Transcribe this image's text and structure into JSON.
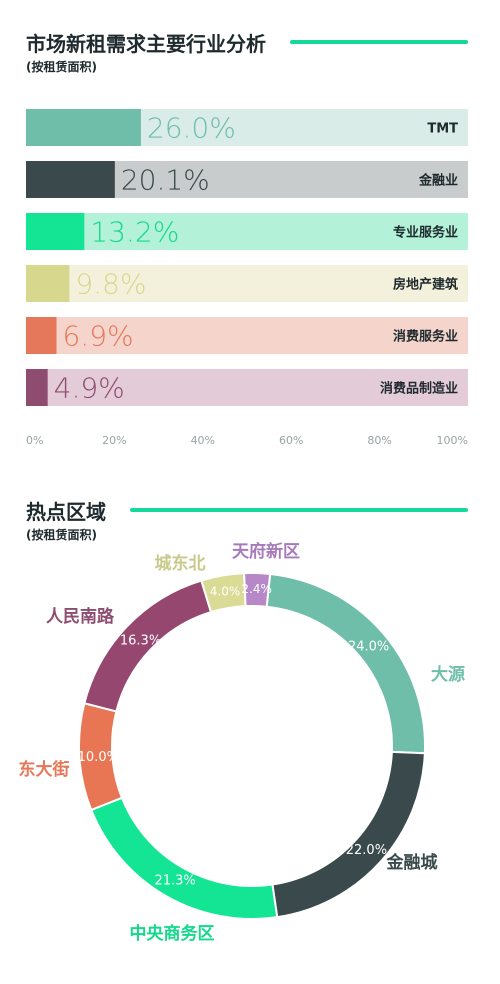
{
  "sections": {
    "industry_title": "市场新租需求主要行业分析",
    "industry_subtitle": "(按租赁面积)",
    "hotspot_title": "热点区域",
    "hotspot_subtitle": "(按租赁面积)"
  },
  "colors": {
    "accent": "#14d99a",
    "title": "#1f2a2e"
  },
  "chart_data": [
    {
      "type": "bar",
      "orientation": "horizontal",
      "title": "市场新租需求主要行业分析",
      "subtitle": "(按租赁面积)",
      "categories": [
        "TMT",
        "金融业",
        "专业服务业",
        "房地产建筑",
        "消费服务业",
        "消费品制造业"
      ],
      "values": [
        26.0,
        20.1,
        13.2,
        9.8,
        6.9,
        4.9
      ],
      "value_labels": [
        "26.0%",
        "20.1%",
        "13.2%",
        "9.8%",
        "6.9%",
        "4.9%"
      ],
      "colors": [
        "#6fbea9",
        "#3a4a4c",
        "#14e594",
        "#d8d78e",
        "#e5775a",
        "#8d4c70"
      ],
      "track_colors": [
        "#d9ece7",
        "#c8cccc",
        "#b3f2d9",
        "#f3f1dc",
        "#f5d5cb",
        "#e4cbd8"
      ],
      "label_colors": [
        "#6fbea9",
        "#3a4a4c",
        "#14d98a",
        "#d8d78e",
        "#e5775a",
        "#8d4c70"
      ],
      "xlim": [
        0,
        100
      ],
      "xticks": [
        "0%",
        "20%",
        "40%",
        "60%",
        "80%",
        "100%"
      ],
      "grid": false
    },
    {
      "type": "pie",
      "variant": "donut",
      "title": "热点区域",
      "subtitle": "(按租赁面积)",
      "categories": [
        "大源",
        "金融城",
        "中央商务区",
        "东大街",
        "人民南路",
        "城东北",
        "天府新区"
      ],
      "values": [
        24.0,
        22.0,
        21.3,
        10.0,
        16.3,
        4.0,
        2.4
      ],
      "value_labels": [
        "24.0%",
        "22.0%",
        "21.3%",
        "10.0%",
        "16.3%",
        "4.0%",
        "2.4%"
      ],
      "colors": [
        "#6fbea9",
        "#3a4a4c",
        "#14e594",
        "#e87554",
        "#96476f",
        "#dadb95",
        "#b688c8"
      ],
      "label_colors": [
        "#6fbea9",
        "#3a4a4c",
        "#14d98a",
        "#e5775a",
        "#8d4c70",
        "#c9c98a",
        "#a77bbb"
      ]
    }
  ]
}
